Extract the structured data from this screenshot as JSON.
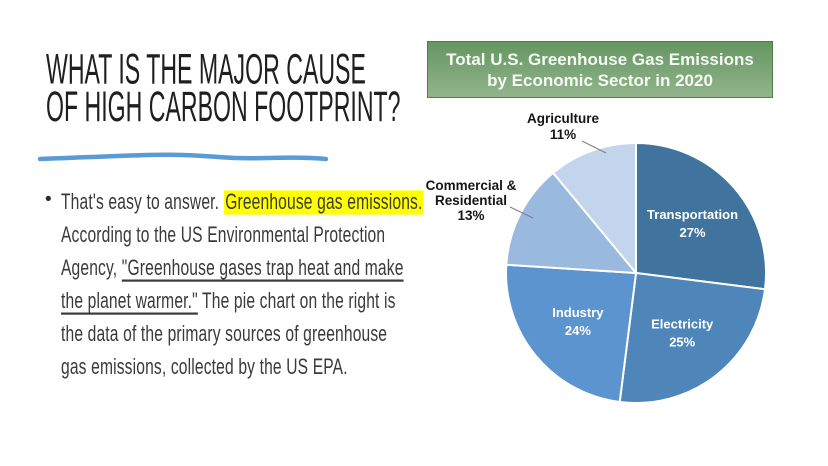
{
  "slide": {
    "title_lines": [
      "WHAT IS THE MAJOR CAUSE",
      "OF HIGH CARBON FOOTPRINT?"
    ],
    "accent_underline_color": "#5b9bd5",
    "bullet_char": "•",
    "text_color": "#3a3a3a",
    "highlight_color": "#ffff00",
    "bullet_lines": [
      [
        {
          "text": "That's easy to answer. "
        },
        {
          "text": "Greenhouse gas emissions.",
          "style": "highlight"
        }
      ],
      [
        {
          "text": "According to the US Environmental Protection"
        }
      ],
      [
        {
          "text": "Agency, "
        },
        {
          "text": "\"Greenhouse gases trap heat and make",
          "style": "underline"
        }
      ],
      [
        {
          "text": "the planet warmer.\"",
          "style": "underline"
        },
        {
          "text": " The pie chart on the right is"
        }
      ],
      [
        {
          "text": "the data of the primary sources of greenhouse"
        }
      ],
      [
        {
          "text": "gas emissions, collected by the US EPA."
        }
      ]
    ]
  },
  "chart": {
    "banner_title_lines": [
      "Total U.S. Greenhouse Gas Emissions",
      "by Economic Sector in 2020"
    ],
    "banner_gradient_top": "#649661",
    "banner_gradient_bottom": "#93b48c",
    "banner_border_color": "#4d7e48",
    "banner_text_color": "#f6f9f4"
  },
  "chart_data": {
    "type": "pie",
    "title": "Total U.S. Greenhouse Gas Emissions by Economic Sector in 2020",
    "value_unit": "percent",
    "start_angle_deg": 0,
    "direction": "clockwise",
    "slice_border_color": "#ffffff",
    "inside_label_color": "#ffffff",
    "outside_label_color": "#151515",
    "leader_line_color": "#7f7f7f",
    "slices": [
      {
        "label": "Transportation",
        "value": 27,
        "pct_label": "27%",
        "color": "#40739e",
        "label_pos": "inside",
        "label_lines": [
          "Transportation"
        ]
      },
      {
        "label": "Electricity",
        "value": 25,
        "pct_label": "25%",
        "color": "#4e86ba",
        "label_pos": "inside",
        "label_lines": [
          "Electricity"
        ]
      },
      {
        "label": "Industry",
        "value": 24,
        "pct_label": "24%",
        "color": "#5b94ce",
        "label_pos": "inside",
        "label_lines": [
          "Industry"
        ]
      },
      {
        "label": "Commercial & Residential",
        "value": 13,
        "pct_label": "13%",
        "color": "#9ab9de",
        "label_pos": "outside",
        "label_lines": [
          "Commercial &",
          "Residential"
        ]
      },
      {
        "label": "Agriculture",
        "value": 11,
        "pct_label": "11%",
        "color": "#c2d5ec",
        "label_pos": "outside",
        "label_lines": [
          "Agriculture"
        ]
      }
    ]
  }
}
